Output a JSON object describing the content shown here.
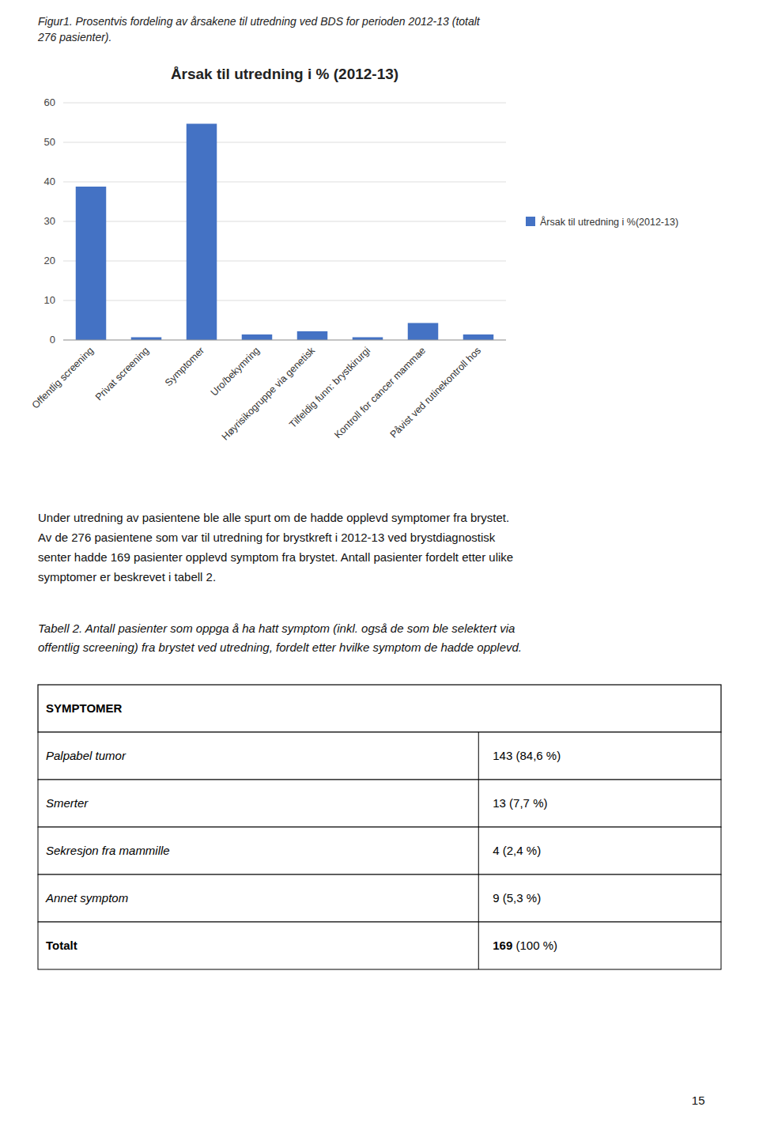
{
  "fig_title_lines": [
    "Figur1. Prosentvis fordeling av årsakene til utredning ved BDS for perioden 2012-13 (totalt",
    "276 pasienter)."
  ],
  "chart_data": {
    "type": "bar",
    "title": "Årsak til utredning i % (2012-13)",
    "categories": [
      "Offentlig screening",
      "Privat screening",
      "Symptomer",
      "Uro/bekymring",
      "Høyrisikogruppe via genetisk",
      "Tilfeldig funn: brystkirurgi",
      "Kontroll for cancer mammae",
      "Påvist ved rutinekontroll hos"
    ],
    "series": [
      {
        "name": "Årsak til utredning i %(2012-13)",
        "color": "#4472C4",
        "values": [
          38.8,
          0.7,
          54.7,
          1.4,
          2.2,
          0.7,
          4.3,
          1.4
        ]
      }
    ],
    "ylim": [
      0,
      60
    ],
    "yticks": [
      0,
      10,
      20,
      30,
      40,
      50,
      60
    ],
    "grid": true,
    "legend": "right"
  },
  "paragraph_lines": [
    "Under utredning av pasientene ble alle spurt om de hadde opplevd symptomer fra brystet.",
    "Av de 276 pasientene som var til utredning for brystkreft i 2012-13 ved brystdiagnostisk",
    "senter hadde 169 pasienter opplevd symptom fra brystet. Antall pasienter fordelt etter ulike",
    "symptomer er beskrevet i tabell 2."
  ],
  "caption_lines": [
    "Tabell 2. Antall pasienter som oppga å ha hatt symptom (inkl. også de som ble selektert via",
    "offentlig screening) fra brystet ved utredning, fordelt etter hvilke symptom de hadde opplevd."
  ],
  "table": {
    "header": "SYMPTOMER",
    "rows": [
      [
        "Palpabel tumor",
        "143 (84,6 %)"
      ],
      [
        "Smerter",
        "13 (7,7 %)"
      ],
      [
        "Sekresjon fra mammille",
        "4 (2,4 %)"
      ],
      [
        "Annet symptom",
        "9 (5,3 %)"
      ],
      [
        "Totalt",
        "169 (100 %)"
      ]
    ]
  },
  "page_number": "15"
}
